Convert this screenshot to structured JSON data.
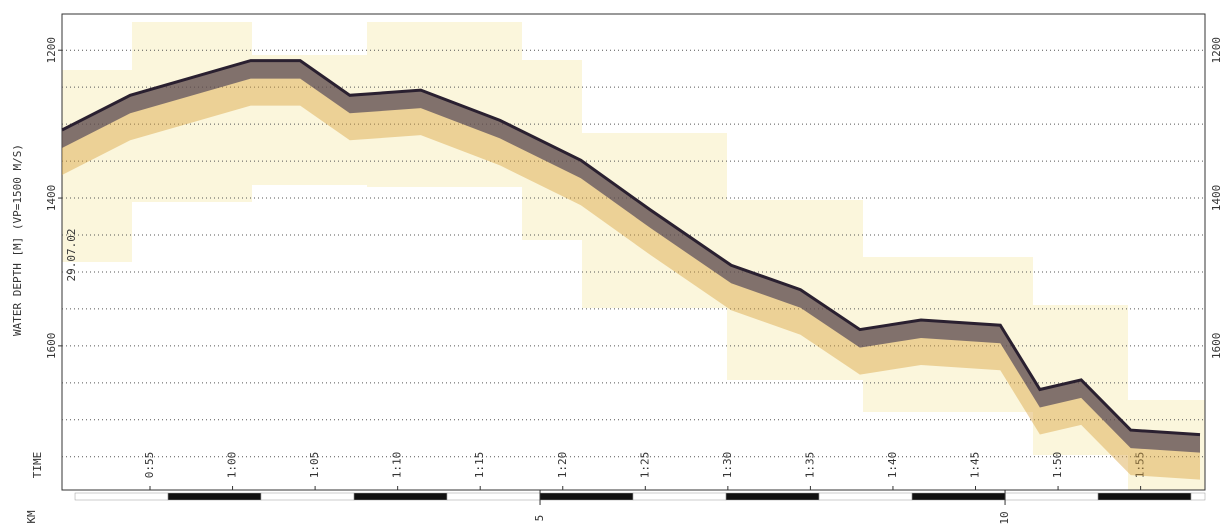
{
  "chart_data": {
    "type": "profile",
    "y_label": "WATER DEPTH [M] (VP=1500 M/S)",
    "x_label": "TIME",
    "km_label": "KM",
    "date": "29.07.02",
    "ylim": [
      1151,
      1795
    ],
    "y_reversed": true,
    "yticks": [
      1200,
      1400,
      1600
    ],
    "ygrid": [
      1200,
      1250,
      1300,
      1350,
      1400,
      1450,
      1500,
      1550,
      1600,
      1650,
      1700,
      1750
    ],
    "xlim": [
      49.67,
      118.9
    ],
    "xticks": [
      {
        "value": 55,
        "label": "0:55"
      },
      {
        "value": 60,
        "label": "1:00"
      },
      {
        "value": 65,
        "label": "1:05"
      },
      {
        "value": 70,
        "label": "1:10"
      },
      {
        "value": 75,
        "label": "1:15"
      },
      {
        "value": 80,
        "label": "1:20"
      },
      {
        "value": 85,
        "label": "1:25"
      },
      {
        "value": 90,
        "label": "1:30"
      },
      {
        "value": 95,
        "label": "1:35"
      },
      {
        "value": 100,
        "label": "1:40"
      },
      {
        "value": 105,
        "label": "1:45"
      },
      {
        "value": 110,
        "label": "1:50"
      },
      {
        "value": 115,
        "label": "1:55"
      }
    ],
    "kmlim": [
      -0.14,
      12.15
    ],
    "kmticks": [
      5,
      10
    ],
    "x": [
      49.67,
      53.8,
      61.1,
      64.1,
      67.1,
      71.4,
      76.2,
      81.1,
      85.3,
      90.2,
      94.4,
      98.0,
      101.7,
      106.5,
      108.9,
      111.4,
      114.4,
      118.6
    ],
    "values": [
      1308,
      1261,
      1214,
      1214,
      1261,
      1254,
      1295,
      1349,
      1416,
      1491,
      1524,
      1578,
      1565,
      1572,
      1659,
      1646,
      1714,
      1720
    ],
    "color": "#2a2030"
  }
}
